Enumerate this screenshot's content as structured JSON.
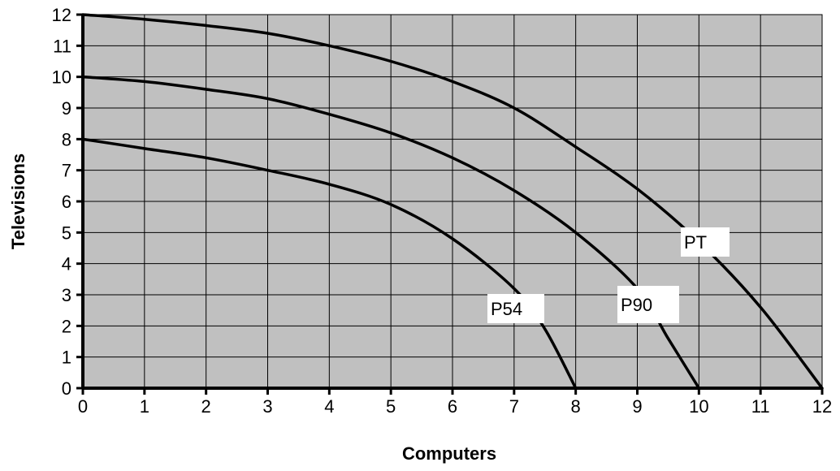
{
  "chart_data": {
    "type": "line",
    "title": "",
    "xlabel": "Computers",
    "ylabel": "Televisions",
    "xlim": [
      0,
      12
    ],
    "ylim": [
      0,
      12
    ],
    "xticks": [
      "0",
      "1",
      "2",
      "3",
      "4",
      "5",
      "6",
      "7",
      "8",
      "9",
      "10",
      "11",
      "12"
    ],
    "yticks": [
      "0",
      "1",
      "2",
      "3",
      "4",
      "5",
      "6",
      "7",
      "8",
      "9",
      "10",
      "11",
      "12"
    ],
    "grid": true,
    "plot_background": "#c0c0c0",
    "line_color": "#000000",
    "series": [
      {
        "name": "P54",
        "x": [
          0,
          1,
          2,
          3,
          4,
          5,
          6,
          7,
          7.5,
          8
        ],
        "y": [
          8,
          7.7,
          7.4,
          7.0,
          6.55,
          5.9,
          4.8,
          3.2,
          1.9,
          0
        ]
      },
      {
        "name": "P90",
        "x": [
          0,
          1,
          2,
          3,
          4,
          5,
          6,
          7,
          8,
          9,
          9.5,
          10
        ],
        "y": [
          10,
          9.85,
          9.6,
          9.3,
          8.8,
          8.2,
          7.4,
          6.35,
          5.0,
          3.2,
          1.6,
          0
        ]
      },
      {
        "name": "PT",
        "x": [
          0,
          1,
          2,
          3,
          4,
          5,
          6,
          7,
          8,
          9,
          10,
          11,
          12
        ],
        "y": [
          12,
          11.85,
          11.65,
          11.4,
          11.0,
          10.5,
          9.85,
          9.0,
          7.75,
          6.4,
          4.7,
          2.6,
          0
        ]
      }
    ]
  }
}
